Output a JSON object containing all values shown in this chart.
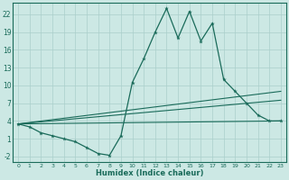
{
  "xlabel": "Humidex (Indice chaleur)",
  "x_values": [
    0,
    1,
    2,
    3,
    4,
    5,
    6,
    7,
    8,
    9,
    10,
    11,
    12,
    13,
    14,
    15,
    16,
    17,
    18,
    19,
    20,
    21,
    22,
    23
  ],
  "line1_y": [
    3.5,
    3.0,
    2.0,
    1.5,
    1.0,
    0.5,
    -0.5,
    -1.5,
    -1.8,
    1.5,
    10.5,
    14.5,
    19.0,
    23.0,
    18.0,
    22.5,
    17.5,
    20.5,
    11.0,
    9.0,
    7.0,
    5.0,
    4.0,
    4.0
  ],
  "straight_lines": [
    [
      3.5,
      9.0
    ],
    [
      3.5,
      7.5
    ],
    [
      3.5,
      4.0
    ]
  ],
  "bg_color": "#cce8e4",
  "grid_color": "#aacfcb",
  "line_color": "#1a6b5a",
  "ylim": [
    -3,
    24
  ],
  "yticks": [
    -2,
    1,
    4,
    7,
    10,
    13,
    16,
    19,
    22
  ],
  "xlim": [
    -0.5,
    23.5
  ],
  "xticks": [
    0,
    1,
    2,
    3,
    4,
    5,
    6,
    7,
    8,
    9,
    10,
    11,
    12,
    13,
    14,
    15,
    16,
    17,
    18,
    19,
    20,
    21,
    22,
    23
  ],
  "xtick_labels": [
    "0",
    "1",
    "2",
    "3",
    "4",
    "5",
    "6",
    "7",
    "8",
    "9",
    "10",
    "11",
    "12",
    "13",
    "14",
    "15",
    "16",
    "17",
    "18",
    "19",
    "20",
    "21",
    "22",
    "23"
  ]
}
